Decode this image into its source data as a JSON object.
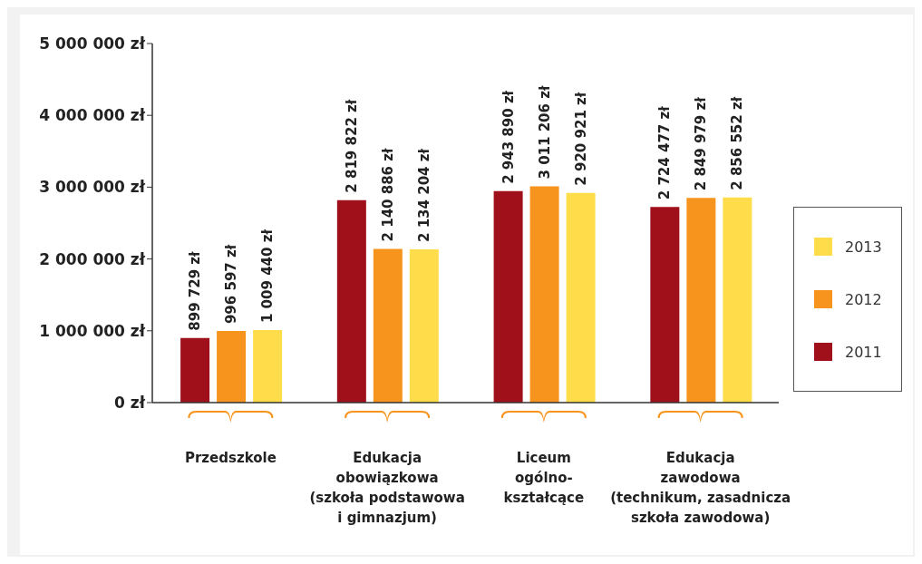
{
  "chart_data": {
    "type": "bar",
    "categories": [
      "Przedszkole",
      "Edukacja\nobowiązkowa\n(szkoła podstawowa\ni gimnazjum)",
      "Liceum\nogólno-\nkształcące",
      "Edukacja\nzawodowa\n(technikum, zasadnicza\nszkoła zawodowa)"
    ],
    "series": [
      {
        "name": "2011",
        "color": "#a0101a",
        "values": [
          899729,
          2819822,
          2943890,
          2724477
        ],
        "value_labels": [
          "899 729 zł",
          "2 819 822 zł",
          "2 943 890 zł",
          "2 724 477 zł"
        ]
      },
      {
        "name": "2012",
        "color": "#f7941d",
        "values": [
          996597,
          2140886,
          3011206,
          2849979
        ],
        "value_labels": [
          "996 597 zł",
          "2 140 886 zł",
          "3 011 206 zł",
          "2 849 979 zł"
        ]
      },
      {
        "name": "2013",
        "color": "#ffdd4a",
        "values": [
          1009440,
          2134204,
          2920921,
          2856552
        ],
        "value_labels": [
          "1 009 440 zł",
          "2 134 204 zł",
          "2 920 921 zł",
          "2 856 552 zł"
        ]
      }
    ],
    "ylim": [
      0,
      5000000
    ],
    "yticks": [
      {
        "value": 0,
        "label": "0 zł"
      },
      {
        "value": 1000000,
        "label": "1 000 000 zł"
      },
      {
        "value": 2000000,
        "label": "2 000 000 zł"
      },
      {
        "value": 3000000,
        "label": "3 000 000 zł"
      },
      {
        "value": 4000000,
        "label": "4 000 000 zł"
      },
      {
        "value": 5000000,
        "label": "5 000 000 zł"
      }
    ],
    "grid": false,
    "legend": "right"
  }
}
